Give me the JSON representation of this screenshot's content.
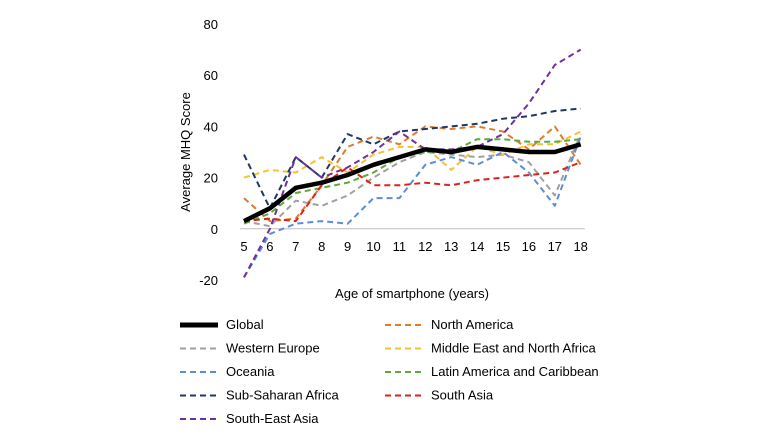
{
  "chart_data": {
    "type": "line",
    "title": "",
    "xlabel": "Age of smartphone (years)",
    "ylabel": "Average MHQ Score",
    "categories": [
      "5",
      "6",
      "7",
      "8",
      "9",
      "10",
      "11",
      "12",
      "13",
      "14",
      "15",
      "16",
      "17",
      "18"
    ],
    "ylim": [
      -20,
      80
    ],
    "yticks": [
      -20,
      0,
      20,
      40,
      60,
      80
    ],
    "grid": false,
    "legend_position": "bottom",
    "series": [
      {
        "name": "Global",
        "color": "#000000",
        "style": "solid",
        "values": [
          3,
          8,
          16,
          18,
          21,
          25,
          28,
          31,
          30,
          32,
          31,
          30,
          30,
          33
        ]
      },
      {
        "name": "North America",
        "color": "#E07B2E",
        "style": "dashed",
        "values": [
          12,
          3,
          4,
          17,
          32,
          36,
          33,
          40,
          39,
          40,
          38,
          31,
          40,
          25
        ]
      },
      {
        "name": "Western Europe",
        "color": "#A0A0A0",
        "style": "dashed",
        "values": [
          3,
          1,
          11,
          9,
          13,
          20,
          26,
          30,
          29,
          28,
          29,
          26,
          13,
          37
        ]
      },
      {
        "name": "Middle East and North Africa",
        "color": "#F5C22E",
        "style": "dashed",
        "values": [
          20,
          23,
          22,
          28,
          22,
          29,
          32,
          32,
          23,
          32,
          29,
          33,
          33,
          38
        ]
      },
      {
        "name": "Oceania",
        "color": "#5B8ED6",
        "style": "dashed",
        "values": [
          -19,
          -2,
          2,
          3,
          2,
          12,
          12,
          25,
          28,
          25,
          30,
          22,
          9,
          36
        ]
      },
      {
        "name": "Latin America and Caribbean",
        "color": "#5EA83E",
        "style": "dashed",
        "values": [
          2,
          6,
          14,
          16,
          18,
          22,
          28,
          30,
          30,
          35,
          35,
          34,
          34,
          35
        ]
      },
      {
        "name": "Sub-Saharan Africa",
        "color": "#1F3864",
        "style": "dashed",
        "values": [
          29,
          8,
          28,
          20,
          37,
          33,
          38,
          39,
          40,
          41,
          43,
          44,
          46,
          47
        ]
      },
      {
        "name": "South Asia",
        "color": "#E0201C",
        "style": "dashed",
        "values": [
          3,
          4,
          3,
          17,
          24,
          17,
          17,
          18,
          17,
          19,
          20,
          21,
          22,
          26
        ]
      },
      {
        "name": "South-East Asia",
        "color": "#7030A0",
        "style": "dashed",
        "values": [
          -19,
          0,
          28,
          20,
          24,
          30,
          38,
          31,
          31,
          32,
          37,
          49,
          64,
          70
        ]
      }
    ]
  }
}
